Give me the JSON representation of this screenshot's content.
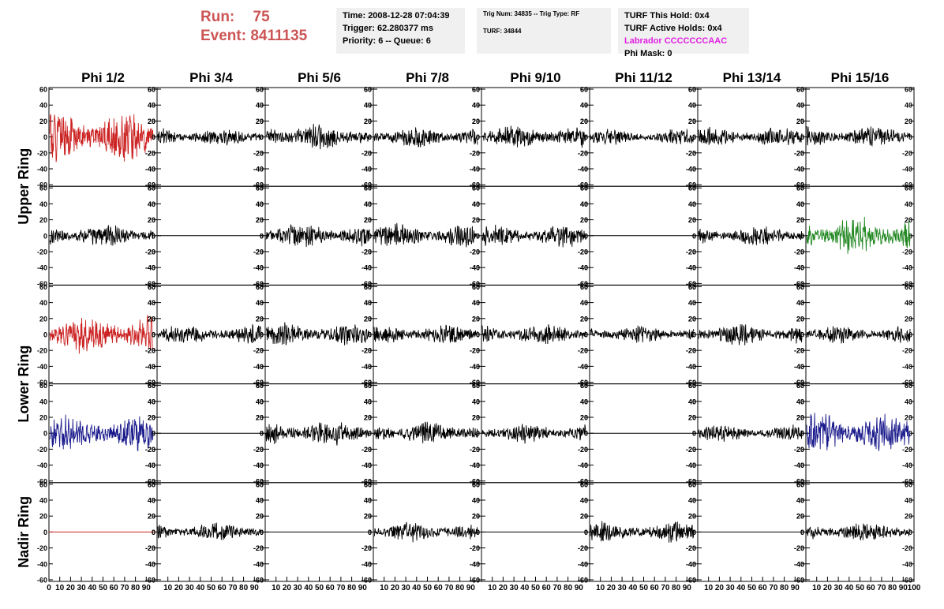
{
  "header": {
    "run_label": "Run:",
    "run_value": "75",
    "event_label": "Event:",
    "event_value": "8411135",
    "time": "Time: 2008-12-28 07:04:39",
    "trigger": "Trigger: 62.280377 ms",
    "priority": "Priority: 6 -- Queue: 6",
    "trig_num": "Trig Num: 34835 -- Trig Type: RF",
    "turf": "TURF: 34844",
    "turf_this_hold": "TURF This Hold: 0x4",
    "turf_active_holds": "TURF Active Holds: 0x4",
    "labrador": "Labrador CCCCCCCAAC",
    "phi_mask": "Phi Mask: 0"
  },
  "colors": {
    "run_text": "#cc5555",
    "labrador": "#e020e0",
    "trace_default": "#000000",
    "trace_red": "#cc2222",
    "trace_green": "#228822",
    "trace_blue": "#1a1a8c"
  },
  "chart_data": {
    "type": "line",
    "columns": [
      "Phi 1/2",
      "Phi 3/4",
      "Phi 5/6",
      "Phi 7/8",
      "Phi 9/10",
      "Phi 11/12",
      "Phi 13/14",
      "Phi 15/16"
    ],
    "ring_labels": [
      {
        "label": "Upper Ring",
        "rows": [
          0,
          1
        ]
      },
      {
        "label": "Lower Ring",
        "rows": [
          2,
          3
        ]
      },
      {
        "label": "Nadir Ring",
        "rows": [
          4
        ]
      }
    ],
    "ylim": [
      -62,
      62
    ],
    "y_ticks": [
      -60,
      -40,
      -20,
      0,
      20,
      40,
      60
    ],
    "xlim": [
      0,
      100
    ],
    "x_ticks": [
      0,
      10,
      20,
      30,
      40,
      50,
      60,
      70,
      80,
      90,
      100
    ],
    "samples": 260,
    "rows": [
      [
        {
          "color": "red",
          "amp": 30,
          "freq": 0.35,
          "seed": 1
        },
        {
          "color": "black",
          "amp": 12,
          "freq": 0.8,
          "seed": 2
        },
        {
          "color": "black",
          "amp": 16,
          "freq": 0.8,
          "seed": 3
        },
        {
          "color": "black",
          "amp": 13,
          "freq": 0.8,
          "seed": 4
        },
        {
          "color": "black",
          "amp": 14,
          "freq": 0.8,
          "seed": 5
        },
        {
          "color": "black",
          "amp": 10,
          "freq": 0.8,
          "seed": 6
        },
        {
          "color": "black",
          "amp": 12,
          "freq": 0.8,
          "seed": 7
        },
        {
          "color": "black",
          "amp": 13,
          "freq": 0.8,
          "seed": 8
        }
      ],
      [
        {
          "color": "black",
          "amp": 14,
          "freq": 0.8,
          "seed": 9
        },
        {
          "color": "black",
          "amp": 0,
          "freq": 0.8,
          "seed": 10
        },
        {
          "color": "black",
          "amp": 15,
          "freq": 0.8,
          "seed": 11
        },
        {
          "color": "black",
          "amp": 15,
          "freq": 0.8,
          "seed": 12
        },
        {
          "color": "black",
          "amp": 14,
          "freq": 0.8,
          "seed": 13
        },
        {
          "color": "black",
          "amp": 0,
          "freq": 0.8,
          "seed": 14
        },
        {
          "color": "black",
          "amp": 12,
          "freq": 0.8,
          "seed": 15
        },
        {
          "color": "green",
          "amp": 24,
          "freq": 0.4,
          "seed": 16
        }
      ],
      [
        {
          "color": "red",
          "amp": 25,
          "freq": 0.4,
          "seed": 17
        },
        {
          "color": "black",
          "amp": 12,
          "freq": 0.8,
          "seed": 18
        },
        {
          "color": "black",
          "amp": 15,
          "freq": 0.8,
          "seed": 19
        },
        {
          "color": "black",
          "amp": 12,
          "freq": 0.8,
          "seed": 20
        },
        {
          "color": "black",
          "amp": 13,
          "freq": 0.8,
          "seed": 21
        },
        {
          "color": "black",
          "amp": 11,
          "freq": 0.8,
          "seed": 22
        },
        {
          "color": "black",
          "amp": 13,
          "freq": 0.8,
          "seed": 23
        },
        {
          "color": "black",
          "amp": 11,
          "freq": 0.8,
          "seed": 24
        }
      ],
      [
        {
          "color": "blue",
          "amp": 22,
          "freq": 0.4,
          "seed": 25
        },
        {
          "color": "black",
          "amp": 0,
          "freq": 0.8,
          "seed": 26
        },
        {
          "color": "black",
          "amp": 15,
          "freq": 0.8,
          "seed": 27
        },
        {
          "color": "black",
          "amp": 14,
          "freq": 0.8,
          "seed": 28
        },
        {
          "color": "black",
          "amp": 12,
          "freq": 0.8,
          "seed": 29
        },
        {
          "color": "black",
          "amp": 0,
          "freq": 0.8,
          "seed": 30
        },
        {
          "color": "black",
          "amp": 10,
          "freq": 0.8,
          "seed": 31
        },
        {
          "color": "blue",
          "amp": 24,
          "freq": 0.4,
          "seed": 32
        }
      ],
      [
        {
          "color": "red",
          "amp": 0,
          "freq": 0.8,
          "seed": 33
        },
        {
          "color": "black",
          "amp": 11,
          "freq": 0.8,
          "seed": 34
        },
        {
          "color": "black",
          "amp": 0,
          "freq": 0.8,
          "seed": 35
        },
        {
          "color": "black",
          "amp": 12,
          "freq": 0.8,
          "seed": 36
        },
        {
          "color": "black",
          "amp": 0,
          "freq": 0.8,
          "seed": 37
        },
        {
          "color": "black",
          "amp": 13,
          "freq": 0.8,
          "seed": 38
        },
        {
          "color": "black",
          "amp": 0,
          "freq": 0.8,
          "seed": 39
        },
        {
          "color": "black",
          "amp": 12,
          "freq": 0.8,
          "seed": 40
        }
      ]
    ]
  }
}
